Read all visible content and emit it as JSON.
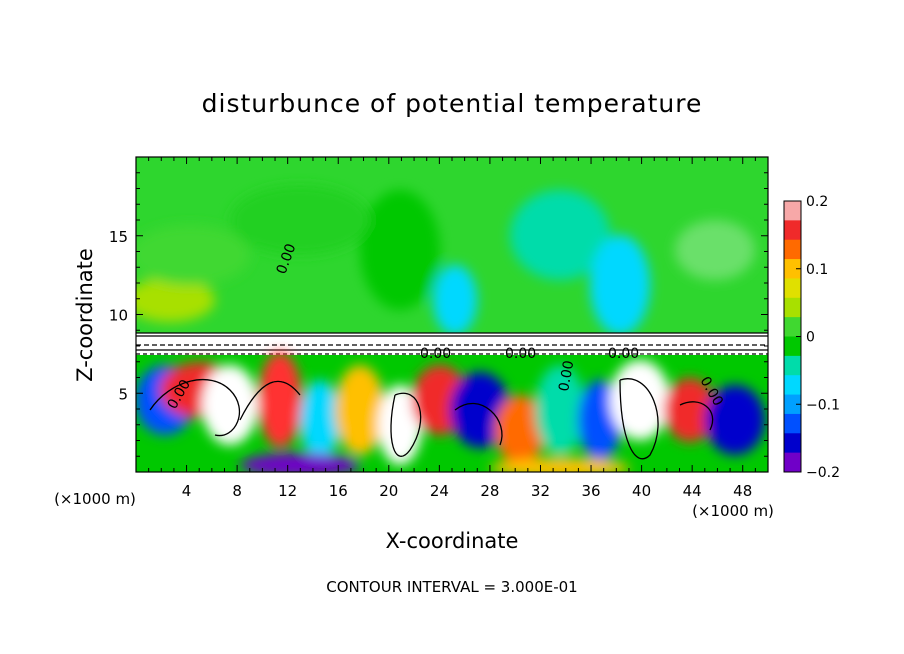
{
  "chart_data": {
    "type": "heatmap",
    "title": "disturbunce of potential temperature",
    "xlabel": "X-coordinate",
    "ylabel": "Z-coordinate",
    "x_unit": "(×1000 m)",
    "x_unit_right": "(×1000 m)",
    "xlim": [
      0,
      50
    ],
    "ylim": [
      0,
      20
    ],
    "x_ticks": [
      "4",
      "8",
      "12",
      "16",
      "20",
      "24",
      "28",
      "32",
      "36",
      "40",
      "44",
      "48"
    ],
    "y_ticks": [
      "5",
      "10",
      "15"
    ],
    "colorbar": {
      "ticks": [
        "0.2",
        "0.1",
        "0",
        "−0.1",
        "−0.2"
      ],
      "range": [
        -0.2,
        0.2
      ],
      "colors": [
        "#f7a8a8",
        "#f02a2a",
        "#ff6a00",
        "#ffc000",
        "#e0e000",
        "#a8e000",
        "#40d830",
        "#00c800",
        "#00dcaa",
        "#00d8ff",
        "#00a0ff",
        "#0050ff",
        "#0000cc",
        "#7000c8"
      ]
    },
    "contour_labels": [
      "0.00",
      "0.00",
      "0.00",
      "0.00",
      "0.00",
      "0.00",
      "0.00"
    ],
    "contour_interval_note": "CONTOUR INTERVAL = 3.000E-01"
  }
}
